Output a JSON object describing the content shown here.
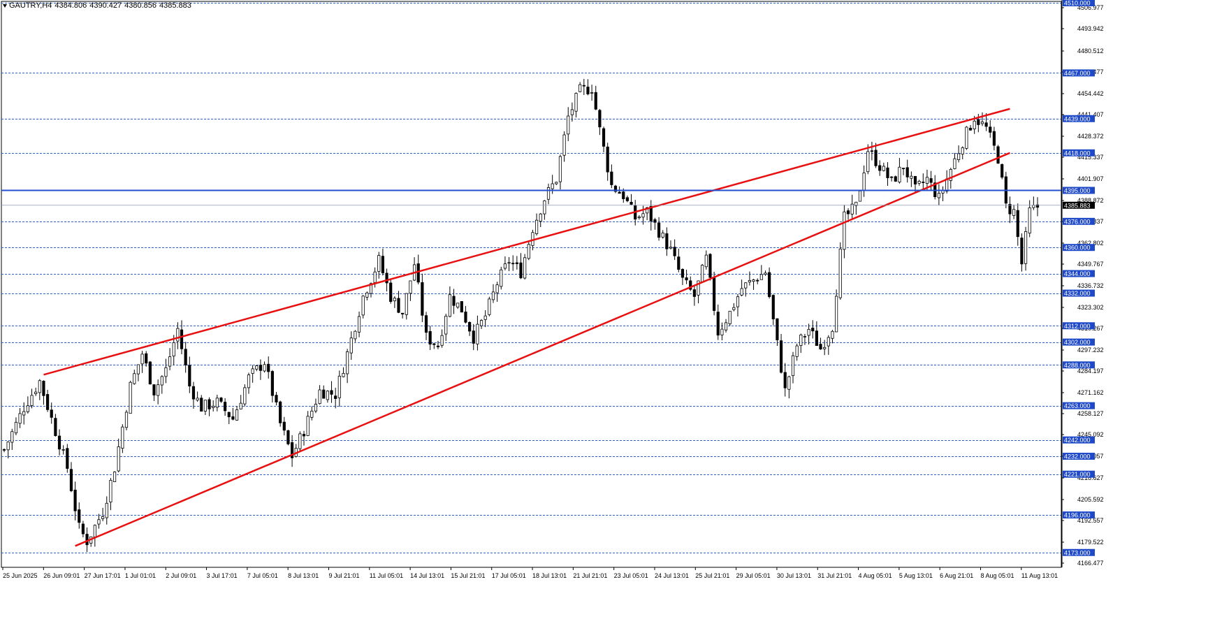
{
  "header": {
    "symbol": "GAUTRY,H4",
    "open": "4384.806",
    "high": "4390.427",
    "low": "4380.856",
    "close": "4385.883"
  },
  "colors": {
    "background": "#ffffff",
    "grid_level": "#3060c0",
    "channel": "#e81010",
    "key_level": "#2050d0",
    "bull_candle_body": "#ffffff",
    "bear_candle_body": "#000000",
    "label_bg": "#1e49c8",
    "current_bg": "#000000"
  },
  "chart_data": {
    "type": "candlestick",
    "timeframe": "H4",
    "ylim": [
      4166.477,
      4510.0
    ],
    "price_scale_ticks": [
      "4506.977",
      "4493.942",
      "4480.512",
      "4467.477",
      "4454.442",
      "4441.407",
      "4428.372",
      "4415.337",
      "4401.907",
      "4388.872",
      "4375.837",
      "4362.802",
      "4349.767",
      "4336.732",
      "4323.302",
      "4310.267",
      "4297.232",
      "4284.197",
      "4271.162",
      "4258.127",
      "4245.092",
      "4232.057",
      "4218.627",
      "4205.592",
      "4192.557",
      "4179.522",
      "4166.477"
    ],
    "level_labels": [
      "4510.000",
      "4467.000",
      "4439.000",
      "4418.000",
      "4395.000",
      "4376.000",
      "4360.000",
      "4344.000",
      "4332.000",
      "4312.000",
      "4302.000",
      "4288.000",
      "4263.000",
      "4242.000",
      "4232.000",
      "4221.000",
      "4196.000",
      "4173.000"
    ],
    "key_level": "4395.000",
    "current_price": "4385.883",
    "x_labels": [
      "25 Jun 2025",
      "26 Jun 09:01",
      "27 Jun 17:01",
      "1 Jul 01:01",
      "2 Jul 09:01",
      "3 Jul 17:01",
      "7 Jul 05:01",
      "8 Jul 13:01",
      "9 Jul 21:01",
      "11 Jul 05:01",
      "14 Jul 13:01",
      "15 Jul 21:01",
      "17 Jul 05:01",
      "18 Jul 13:01",
      "21 Jul 21:01",
      "23 Jul 05:01",
      "24 Jul 13:01",
      "25 Jul 21:01",
      "29 Jul 05:01",
      "30 Jul 13:01",
      "31 Jul 21:01",
      "4 Aug 05:01",
      "5 Aug 13:01",
      "6 Aug 21:01",
      "8 Aug 05:01",
      "11 Aug 13:01"
    ],
    "channel_upper": [
      [
        10,
        4282
      ],
      [
        255,
        4445
      ]
    ],
    "channel_lower": [
      [
        18,
        4177
      ],
      [
        255,
        4418
      ]
    ],
    "waypoints": [
      [
        0,
        4236
      ],
      [
        5,
        4262
      ],
      [
        9,
        4278
      ],
      [
        12,
        4255
      ],
      [
        16,
        4225
      ],
      [
        19,
        4188
      ],
      [
        21,
        4180
      ],
      [
        25,
        4198
      ],
      [
        28,
        4225
      ],
      [
        32,
        4275
      ],
      [
        35,
        4295
      ],
      [
        38,
        4272
      ],
      [
        41,
        4285
      ],
      [
        44,
        4310
      ],
      [
        47,
        4275
      ],
      [
        50,
        4262
      ],
      [
        54,
        4265
      ],
      [
        58,
        4255
      ],
      [
        62,
        4280
      ],
      [
        66,
        4290
      ],
      [
        70,
        4252
      ],
      [
        73,
        4232
      ],
      [
        76,
        4248
      ],
      [
        80,
        4272
      ],
      [
        84,
        4270
      ],
      [
        87,
        4295
      ],
      [
        91,
        4330
      ],
      [
        95,
        4352
      ],
      [
        98,
        4330
      ],
      [
        101,
        4320
      ],
      [
        104,
        4350
      ],
      [
        107,
        4305
      ],
      [
        110,
        4300
      ],
      [
        113,
        4330
      ],
      [
        116,
        4322
      ],
      [
        119,
        4305
      ],
      [
        122,
        4318
      ],
      [
        125,
        4338
      ],
      [
        128,
        4352
      ],
      [
        131,
        4345
      ],
      [
        134,
        4372
      ],
      [
        137,
        4390
      ],
      [
        140,
        4402
      ],
      [
        143,
        4440
      ],
      [
        146,
        4456
      ],
      [
        149,
        4458
      ],
      [
        151,
        4432
      ],
      [
        154,
        4398
      ],
      [
        157,
        4392
      ],
      [
        160,
        4378
      ],
      [
        163,
        4382
      ],
      [
        166,
        4370
      ],
      [
        169,
        4358
      ],
      [
        172,
        4340
      ],
      [
        175,
        4330
      ],
      [
        178,
        4353
      ],
      [
        181,
        4308
      ],
      [
        184,
        4320
      ],
      [
        187,
        4335
      ],
      [
        190,
        4340
      ],
      [
        193,
        4345
      ],
      [
        195,
        4315
      ],
      [
        198,
        4272
      ],
      [
        201,
        4300
      ],
      [
        204,
        4310
      ],
      [
        207,
        4298
      ],
      [
        210,
        4312
      ],
      [
        213,
        4378
      ],
      [
        216,
        4385
      ],
      [
        219,
        4420
      ],
      [
        222,
        4410
      ],
      [
        225,
        4400
      ],
      [
        228,
        4410
      ],
      [
        231,
        4395
      ],
      [
        234,
        4402
      ],
      [
        237,
        4390
      ],
      [
        240,
        4408
      ],
      [
        243,
        4425
      ],
      [
        246,
        4440
      ],
      [
        249,
        4433
      ],
      [
        252,
        4415
      ],
      [
        254,
        4385
      ],
      [
        256,
        4382
      ],
      [
        258,
        4350
      ],
      [
        260,
        4382
      ],
      [
        262,
        4385
      ]
    ],
    "candle_count": 263
  }
}
